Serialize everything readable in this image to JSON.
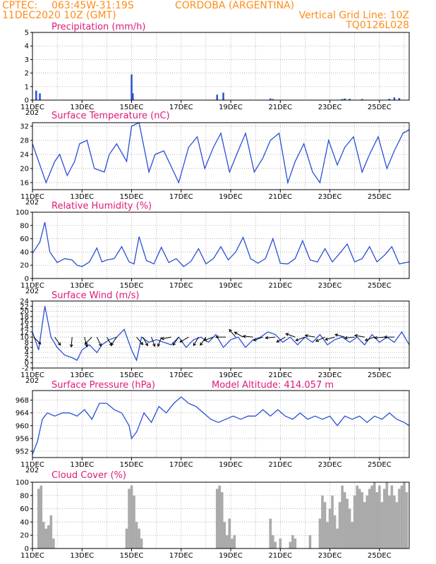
{
  "header": {
    "source": "CPTEC:",
    "coords": "063:45W-31:19S",
    "location": "CORDOBA (ARGENTINA)",
    "run": "11DEC2020 10Z (GMT)",
    "grid_note": "Vertical Grid Line: 10Z",
    "code": "TQ0126L028"
  },
  "colors": {
    "header": "#ff8c1a",
    "title": "#e0187a",
    "series": "#2a4fd6",
    "cloud": "#aaaaaa",
    "arrow": "#000000"
  },
  "x_tick_labels": [
    "11DEC",
    "13DEC",
    "15DEC",
    "17DEC",
    "19DEC",
    "21DEC",
    "23DEC",
    "25DEC"
  ],
  "year_fragment": "202",
  "chart_data": [
    {
      "id": "precip",
      "type": "bar",
      "title": "Precipitation (mm/h)",
      "ylim": [
        0,
        5
      ],
      "yticks": [
        0,
        1,
        2,
        3,
        4,
        5
      ],
      "xlim": [
        0,
        15.2
      ],
      "x": [
        0.15,
        0.3,
        4.0,
        4.05,
        7.45,
        7.7,
        9.6,
        9.7,
        12.5,
        12.6,
        12.8,
        13.3,
        14.4,
        14.6,
        14.8
      ],
      "values": [
        0.7,
        0.5,
        1.9,
        0.5,
        0.4,
        0.55,
        0.12,
        0.08,
        0.08,
        0.12,
        0.1,
        0.08,
        0.1,
        0.2,
        0.15
      ]
    },
    {
      "id": "temp",
      "type": "line",
      "title": "Surface Temperature (nC)",
      "ylim": [
        14,
        33
      ],
      "yticks": [
        16,
        20,
        24,
        28,
        32
      ],
      "xlim": [
        0,
        15.2
      ],
      "x": [
        0,
        0.3,
        0.55,
        0.9,
        1.1,
        1.4,
        1.7,
        1.9,
        2.2,
        2.5,
        2.9,
        3.1,
        3.4,
        3.8,
        4.0,
        4.3,
        4.7,
        4.95,
        5.3,
        5.7,
        5.9,
        6.3,
        6.65,
        6.95,
        7.3,
        7.6,
        7.95,
        8.3,
        8.6,
        8.95,
        9.3,
        9.6,
        9.95,
        10.3,
        10.6,
        10.95,
        11.3,
        11.6,
        11.95,
        12.3,
        12.6,
        12.95,
        13.3,
        13.6,
        13.95,
        14.3,
        14.6,
        14.95,
        15.2
      ],
      "values": [
        27,
        21,
        16,
        22,
        24,
        18,
        22,
        27,
        28,
        20,
        19,
        24,
        27,
        22,
        32,
        33,
        19,
        24,
        25,
        19,
        16,
        26,
        29,
        20,
        26,
        30,
        19,
        25,
        30,
        19,
        23,
        28,
        30,
        16,
        22,
        27,
        19,
        16,
        28,
        21,
        26,
        29,
        19,
        24,
        29,
        20,
        25,
        30,
        31
      ]
    },
    {
      "id": "rh",
      "type": "line",
      "title": "Relative Humidity (%)",
      "ylim": [
        0,
        100
      ],
      "yticks": [
        0,
        20,
        40,
        60,
        80,
        100
      ],
      "xlim": [
        0,
        15.2
      ],
      "x": [
        0,
        0.3,
        0.5,
        0.7,
        1.0,
        1.3,
        1.6,
        1.8,
        2.0,
        2.3,
        2.6,
        2.8,
        3.0,
        3.3,
        3.6,
        3.9,
        4.1,
        4.3,
        4.6,
        4.9,
        5.2,
        5.5,
        5.8,
        6.1,
        6.4,
        6.7,
        7.0,
        7.3,
        7.6,
        7.9,
        8.2,
        8.5,
        8.8,
        9.1,
        9.4,
        9.7,
        10.0,
        10.3,
        10.6,
        10.9,
        11.2,
        11.5,
        11.8,
        12.1,
        12.4,
        12.7,
        13.0,
        13.3,
        13.6,
        13.9,
        14.2,
        14.5,
        14.8,
        15.2
      ],
      "values": [
        38,
        55,
        85,
        40,
        24,
        30,
        28,
        20,
        18,
        25,
        46,
        25,
        28,
        30,
        48,
        25,
        22,
        63,
        27,
        22,
        47,
        24,
        30,
        18,
        26,
        45,
        22,
        30,
        48,
        28,
        40,
        62,
        30,
        23,
        30,
        60,
        23,
        22,
        30,
        57,
        28,
        25,
        45,
        25,
        38,
        52,
        25,
        30,
        48,
        25,
        35,
        48,
        22,
        25
      ]
    },
    {
      "id": "wind",
      "type": "line",
      "title": "Surface Wind (m/s)",
      "ylim": [
        -2,
        24
      ],
      "yticks": [
        -2,
        0,
        2,
        4,
        6,
        8,
        10,
        12,
        14,
        16,
        18,
        20,
        22,
        24
      ],
      "xlim": [
        0,
        15.2
      ],
      "x": [
        0,
        0.25,
        0.5,
        0.75,
        1.0,
        1.3,
        1.6,
        1.8,
        2.0,
        2.3,
        2.6,
        2.8,
        3.1,
        3.4,
        3.7,
        4.0,
        4.2,
        4.4,
        4.7,
        5.0,
        5.3,
        5.6,
        5.9,
        6.2,
        6.5,
        6.8,
        7.1,
        7.4,
        7.7,
        8.0,
        8.3,
        8.6,
        8.9,
        9.2,
        9.5,
        9.8,
        10.1,
        10.4,
        10.7,
        11.0,
        11.3,
        11.6,
        11.9,
        12.2,
        12.5,
        12.8,
        13.1,
        13.4,
        13.7,
        14.0,
        14.3,
        14.6,
        14.9,
        15.2
      ],
      "values": [
        12,
        5,
        22,
        10,
        6,
        3,
        2,
        1,
        5,
        7,
        4,
        7,
        9,
        10,
        13,
        5,
        1,
        10,
        8,
        9,
        8,
        7,
        10,
        6,
        9,
        10,
        8,
        11,
        6,
        9,
        10,
        6,
        9,
        10,
        12,
        11,
        8,
        10,
        7,
        10,
        8,
        11,
        7,
        9,
        10,
        8,
        10,
        7,
        11,
        8,
        10,
        8,
        12,
        7
      ],
      "arrows": [
        [
          0.05,
          135
        ],
        [
          0.9,
          145
        ],
        [
          1.6,
          185
        ],
        [
          2.1,
          165
        ],
        [
          2.4,
          225
        ],
        [
          2.6,
          155
        ],
        [
          3.0,
          150
        ],
        [
          3.4,
          215
        ],
        [
          4.2,
          140
        ],
        [
          4.45,
          150
        ],
        [
          4.8,
          160
        ],
        [
          5.2,
          200
        ],
        [
          5.6,
          260
        ],
        [
          5.9,
          215
        ],
        [
          6.3,
          240
        ],
        [
          6.7,
          210
        ],
        [
          7.0,
          215
        ],
        [
          7.3,
          250
        ],
        [
          7.8,
          270
        ],
        [
          8.2,
          320
        ],
        [
          8.5,
          300
        ],
        [
          8.9,
          275
        ],
        [
          9.3,
          250
        ],
        [
          9.8,
          265
        ],
        [
          10.2,
          240
        ],
        [
          10.6,
          290
        ],
        [
          11.0,
          250
        ],
        [
          11.4,
          280
        ],
        [
          11.8,
          245
        ],
        [
          12.2,
          255
        ],
        [
          12.6,
          285
        ],
        [
          13.0,
          265
        ],
        [
          13.4,
          280
        ],
        [
          13.8,
          250
        ],
        [
          14.2,
          265
        ],
        [
          14.6,
          270
        ]
      ]
    },
    {
      "id": "pressure",
      "type": "line",
      "title": "Surface Pressure (hPa)",
      "note": "Model Altitude: 414.057 m",
      "ylim": [
        950,
        971
      ],
      "yticks": [
        952,
        956,
        960,
        964,
        968
      ],
      "xlim": [
        0,
        15.2
      ],
      "x": [
        0,
        0.2,
        0.4,
        0.6,
        0.9,
        1.2,
        1.5,
        1.8,
        2.1,
        2.4,
        2.7,
        3.0,
        3.3,
        3.6,
        3.9,
        4.0,
        4.2,
        4.5,
        4.8,
        5.1,
        5.4,
        5.7,
        6.0,
        6.3,
        6.6,
        6.9,
        7.2,
        7.5,
        7.8,
        8.1,
        8.4,
        8.7,
        9.0,
        9.3,
        9.6,
        9.9,
        10.2,
        10.5,
        10.8,
        11.1,
        11.4,
        11.7,
        12.0,
        12.3,
        12.6,
        12.9,
        13.2,
        13.5,
        13.8,
        14.1,
        14.4,
        14.7,
        15.0,
        15.2
      ],
      "values": [
        951,
        955,
        962,
        964,
        963,
        964,
        964,
        963,
        965,
        962,
        967,
        967,
        965,
        964,
        960,
        956,
        958,
        964,
        961,
        966,
        964,
        967,
        969,
        967,
        966,
        964,
        962,
        961,
        962,
        963,
        962,
        963,
        963,
        965,
        963,
        965,
        963,
        962,
        964,
        962,
        963,
        962,
        963,
        960,
        963,
        962,
        963,
        961,
        963,
        962,
        964,
        962,
        961,
        960
      ]
    },
    {
      "id": "cloud",
      "type": "bar",
      "title": "Cloud Cover (%)",
      "ylim": [
        0,
        100
      ],
      "yticks": [
        0,
        20,
        40,
        60,
        80,
        100
      ],
      "xlim": [
        0,
        15.2
      ],
      "x": [
        0.25,
        0.35,
        0.45,
        0.55,
        0.65,
        0.75,
        0.85,
        3.8,
        3.9,
        4.0,
        4.1,
        4.2,
        4.3,
        4.4,
        7.45,
        7.55,
        7.65,
        7.75,
        7.85,
        7.95,
        8.05,
        8.15,
        9.6,
        9.7,
        9.8,
        10.0,
        10.4,
        10.5,
        10.6,
        11.2,
        11.6,
        11.7,
        11.8,
        11.9,
        12.0,
        12.1,
        12.2,
        12.3,
        12.4,
        12.5,
        12.6,
        12.7,
        12.8,
        12.9,
        13.0,
        13.1,
        13.2,
        13.3,
        13.4,
        13.5,
        13.6,
        13.7,
        13.8,
        13.9,
        14.0,
        14.1,
        14.2,
        14.3,
        14.4,
        14.5,
        14.6,
        14.7,
        14.8,
        14.9,
        15.0,
        15.1
      ],
      "values": [
        90,
        95,
        40,
        30,
        35,
        50,
        15,
        30,
        90,
        95,
        80,
        40,
        30,
        15,
        90,
        95,
        85,
        40,
        20,
        45,
        15,
        20,
        45,
        20,
        10,
        15,
        10,
        20,
        15,
        20,
        45,
        80,
        70,
        40,
        60,
        80,
        50,
        30,
        70,
        95,
        85,
        75,
        60,
        40,
        80,
        95,
        90,
        85,
        70,
        80,
        90,
        95,
        100,
        85,
        95,
        70,
        90,
        100,
        80,
        95,
        80,
        70,
        90,
        95,
        100,
        85
      ]
    }
  ]
}
